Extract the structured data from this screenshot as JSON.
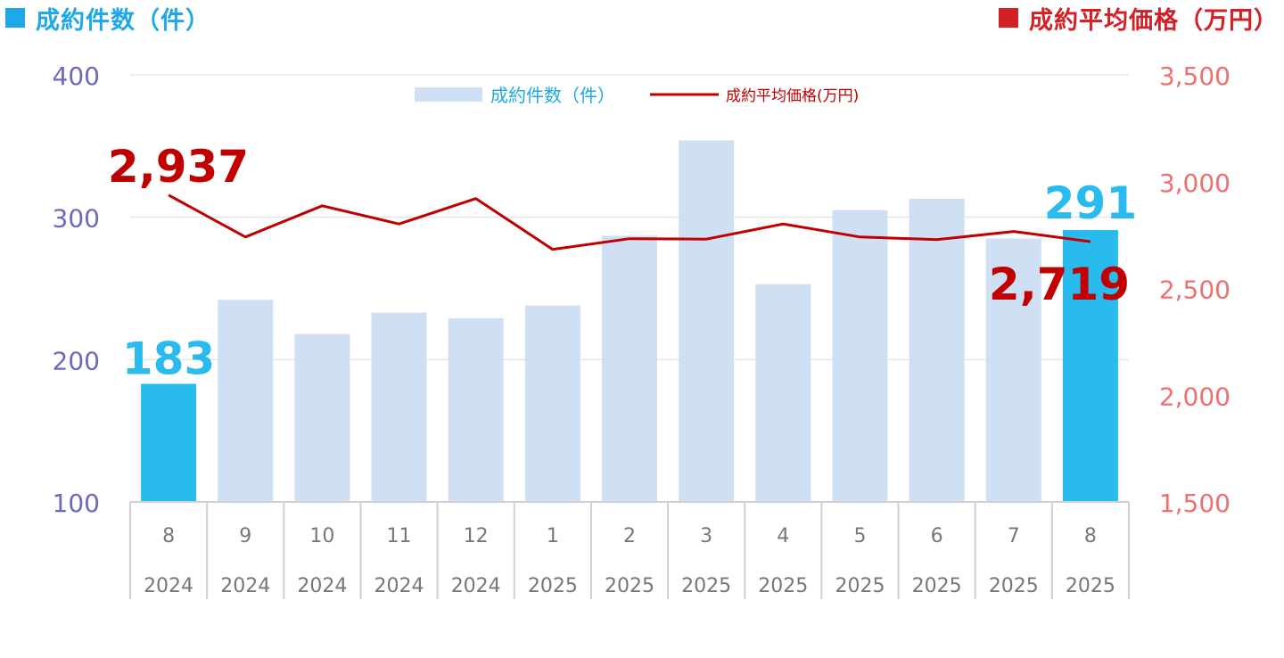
{
  "header": {
    "left_title": "成約件数（件）",
    "right_title": "成約平均価格（万円）"
  },
  "colors": {
    "count_accent": "#1EA8E8",
    "price_accent": "#D32027",
    "bar_regular": "#CFDFF4",
    "bar_highlight": "#29BBEE",
    "line": "#C00000",
    "left_axis_text": "#6A6AC0",
    "right_axis_text": "#F07070",
    "grid": "#DDDDDD",
    "category_text": "#777777"
  },
  "chart_data": {
    "type": "bar",
    "categories": [
      "8",
      "9",
      "10",
      "11",
      "12",
      "1",
      "2",
      "3",
      "4",
      "5",
      "6",
      "7",
      "8"
    ],
    "years": [
      "2024",
      "2024",
      "2024",
      "2024",
      "2024",
      "2025",
      "2025",
      "2025",
      "2025",
      "2025",
      "2025",
      "2025",
      "2025"
    ],
    "series": [
      {
        "name": "成約件数（件）",
        "type": "bar",
        "axis": "left",
        "values": [
          183,
          242,
          218,
          233,
          229,
          238,
          287,
          354,
          253,
          305,
          313,
          285,
          291
        ]
      },
      {
        "name": "成約平均価格(万円)",
        "type": "line",
        "axis": "right",
        "values": [
          2937,
          2741,
          2887,
          2802,
          2921,
          2683,
          2733,
          2731,
          2802,
          2741,
          2729,
          2767,
          2719
        ]
      }
    ],
    "left_axis": {
      "ylim": [
        100,
        400
      ],
      "ticks": [
        "100",
        "200",
        "300",
        "400"
      ]
    },
    "right_axis": {
      "ylim": [
        1500,
        3500
      ],
      "ticks": [
        "1,500",
        "2,000",
        "2,500",
        "3,000",
        "3,500"
      ]
    },
    "highlighted_bars": [
      0,
      12
    ],
    "annotations": {
      "first_count": "183",
      "last_count": "291",
      "first_price": "2,937",
      "last_price": "2,719"
    },
    "grid": true,
    "legend_position": "top-center"
  }
}
